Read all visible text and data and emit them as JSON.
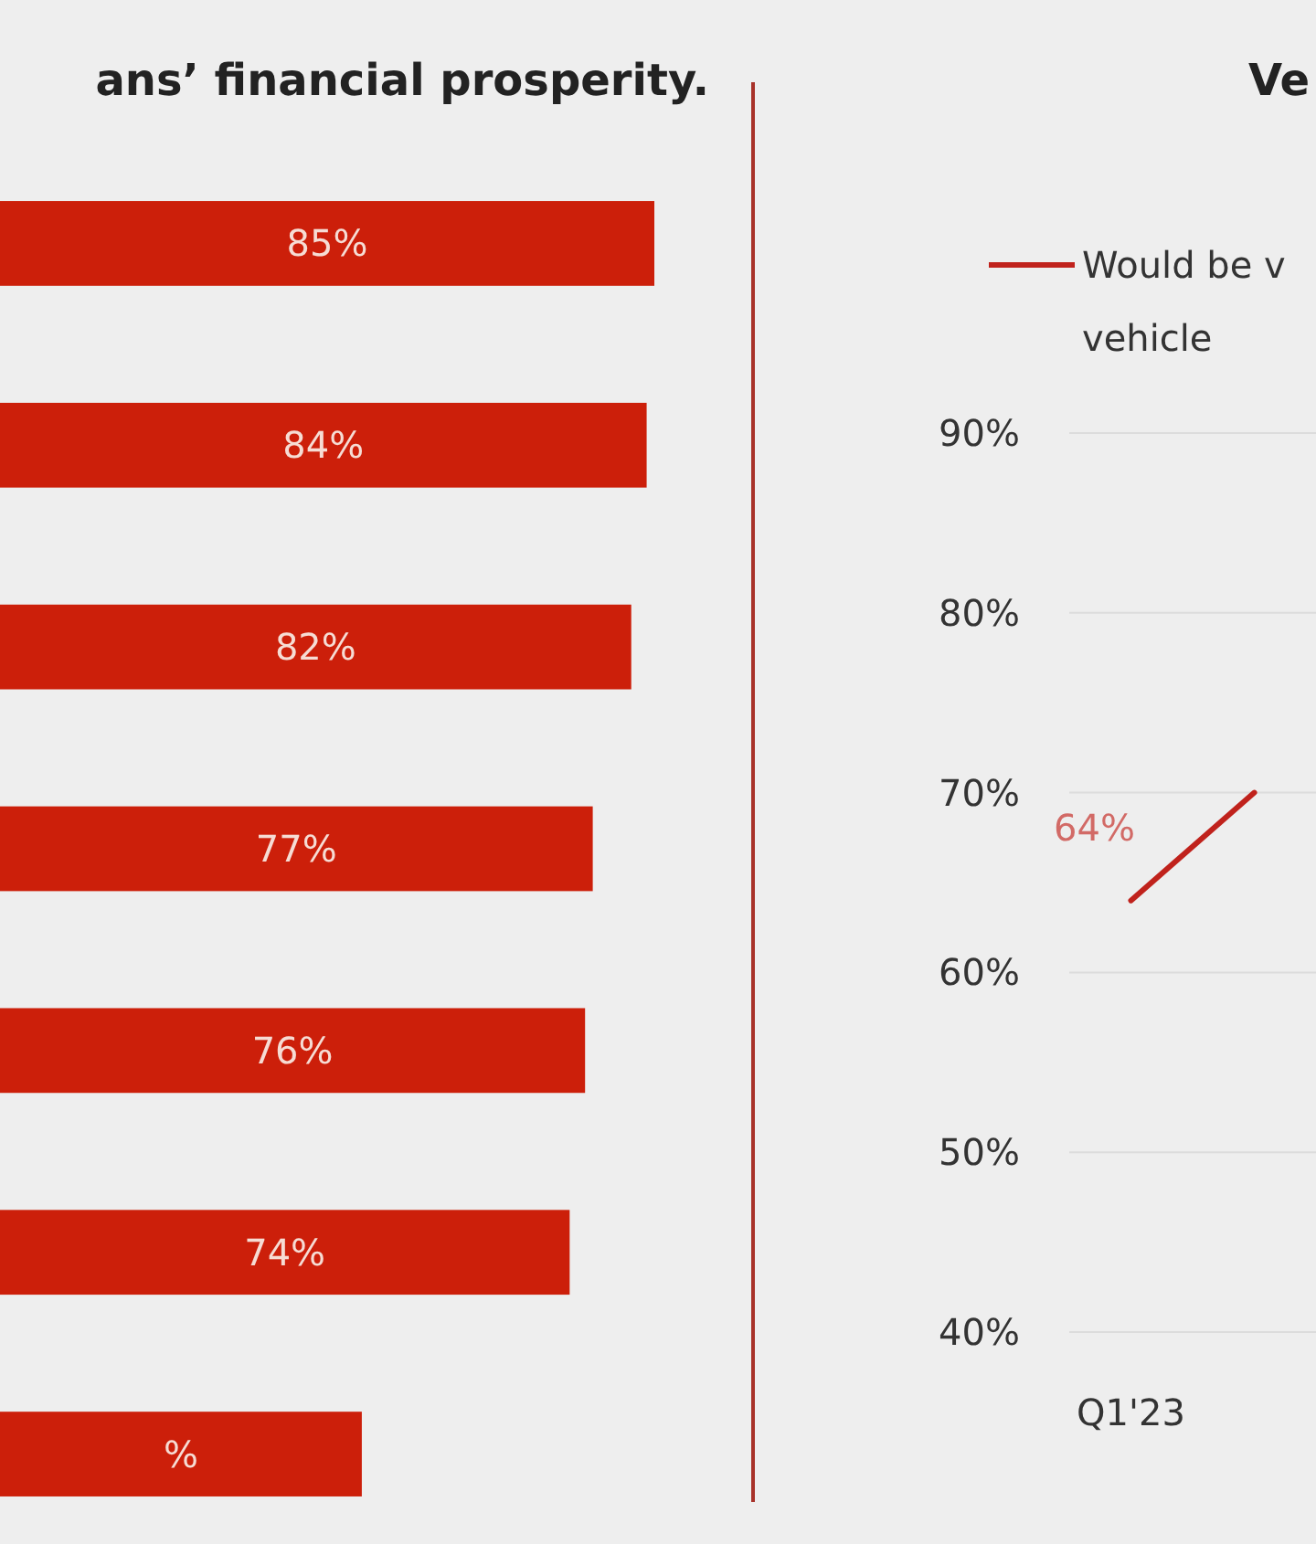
{
  "chart_data": [
    {
      "type": "bar",
      "orientation": "horizontal",
      "title": "ans’ financial prosperity.",
      "categories": [
        null,
        null,
        null,
        null,
        null,
        null,
        null
      ],
      "values": [
        85,
        84,
        82,
        77,
        76,
        74,
        47
      ],
      "color": "#cc1f0a",
      "value_labels": [
        "85%",
        "84%",
        "82%",
        "77%",
        "76%",
        "74%",
        "%"
      ]
    },
    {
      "type": "line",
      "title": "Ve",
      "categories": [
        "Q1'23",
        null
      ],
      "series": [
        {
          "name": "Would be v vehicle",
          "color": "#c0221c",
          "values": [
            64,
            70
          ],
          "value_labels": [
            "64%",
            null
          ]
        }
      ],
      "ylim": [
        40,
        90
      ],
      "yticks": [
        {
          "value": 40,
          "label": "40%"
        },
        {
          "value": 50,
          "label": "50%"
        },
        {
          "value": 60,
          "label": "60%"
        },
        {
          "value": 70,
          "label": "70%"
        },
        {
          "value": 80,
          "label": "80%"
        },
        {
          "value": 90,
          "label": "90%"
        }
      ],
      "grid": "y",
      "legend": "top"
    }
  ]
}
